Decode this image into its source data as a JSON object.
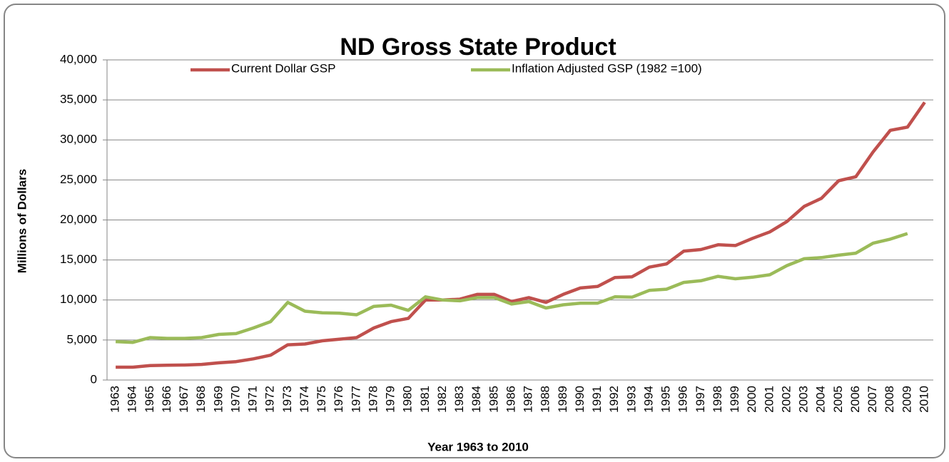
{
  "chart_data": {
    "type": "line",
    "title": "ND Gross State Product",
    "y_label": "Millions of Dollars",
    "x_label": "Year  1963 to 2010",
    "categories": [
      "1963",
      "1964",
      "1965",
      "1966",
      "1967",
      "1968",
      "1969",
      "1970",
      "1971",
      "1972",
      "1973",
      "1974",
      "1975",
      "1976",
      "1977",
      "1978",
      "1979",
      "1980",
      "1981",
      "1982",
      "1983",
      "1984",
      "1985",
      "1986",
      "1987",
      "1988",
      "1989",
      "1990",
      "1991",
      "1992",
      "1993",
      "1994",
      "1995",
      "1996",
      "1997",
      "1998",
      "1999",
      "2000",
      "2001",
      "2002",
      "2003",
      "2004",
      "2005",
      "2006",
      "2007",
      "2008",
      "2009",
      "2010"
    ],
    "series": [
      {
        "name": "Current Dollar GSP",
        "color": "#c0504d",
        "values": [
          1600,
          1600,
          1800,
          1850,
          1870,
          1950,
          2150,
          2300,
          2650,
          3100,
          4400,
          4500,
          4900,
          5100,
          5300,
          6500,
          7300,
          7700,
          10000,
          10000,
          10100,
          10700,
          10700,
          9800,
          10300,
          9700,
          10700,
          11500,
          11700,
          12800,
          12900,
          14100,
          14500,
          16100,
          16300,
          16900,
          16800,
          17700,
          18500,
          19800,
          21700,
          22700,
          24900,
          25400,
          28500,
          31200,
          31600,
          34700
        ]
      },
      {
        "name": "Inflation Adjusted GSP (1982 =100)",
        "color": "#9bbb59",
        "values": [
          4800,
          4700,
          5300,
          5200,
          5200,
          5300,
          5700,
          5800,
          6500,
          7300,
          9700,
          8600,
          8400,
          8350,
          8150,
          9200,
          9350,
          8700,
          10400,
          10000,
          9900,
          10300,
          10300,
          9500,
          9800,
          9000,
          9400,
          9600,
          9600,
          10400,
          10350,
          11200,
          11350,
          12200,
          12400,
          12950,
          12650,
          12850,
          13150,
          14300,
          15150,
          15300,
          15600,
          15850,
          17100,
          17600,
          18300,
          null
        ]
      }
    ],
    "ylim": [
      0,
      40000
    ],
    "yticks": [
      0,
      {
        "value": 5000,
        "label": "5,000"
      },
      {
        "value": 10000,
        "label": "10,000"
      },
      {
        "value": 15000,
        "label": "15,000"
      },
      {
        "value": 20000,
        "label": "20,000"
      },
      {
        "value": 25000,
        "label": "25,000"
      },
      {
        "value": 30000,
        "label": "30,000"
      },
      {
        "value": 35000,
        "label": "35,000"
      },
      {
        "value": 40000,
        "label": "40,000"
      }
    ],
    "grid": true
  }
}
